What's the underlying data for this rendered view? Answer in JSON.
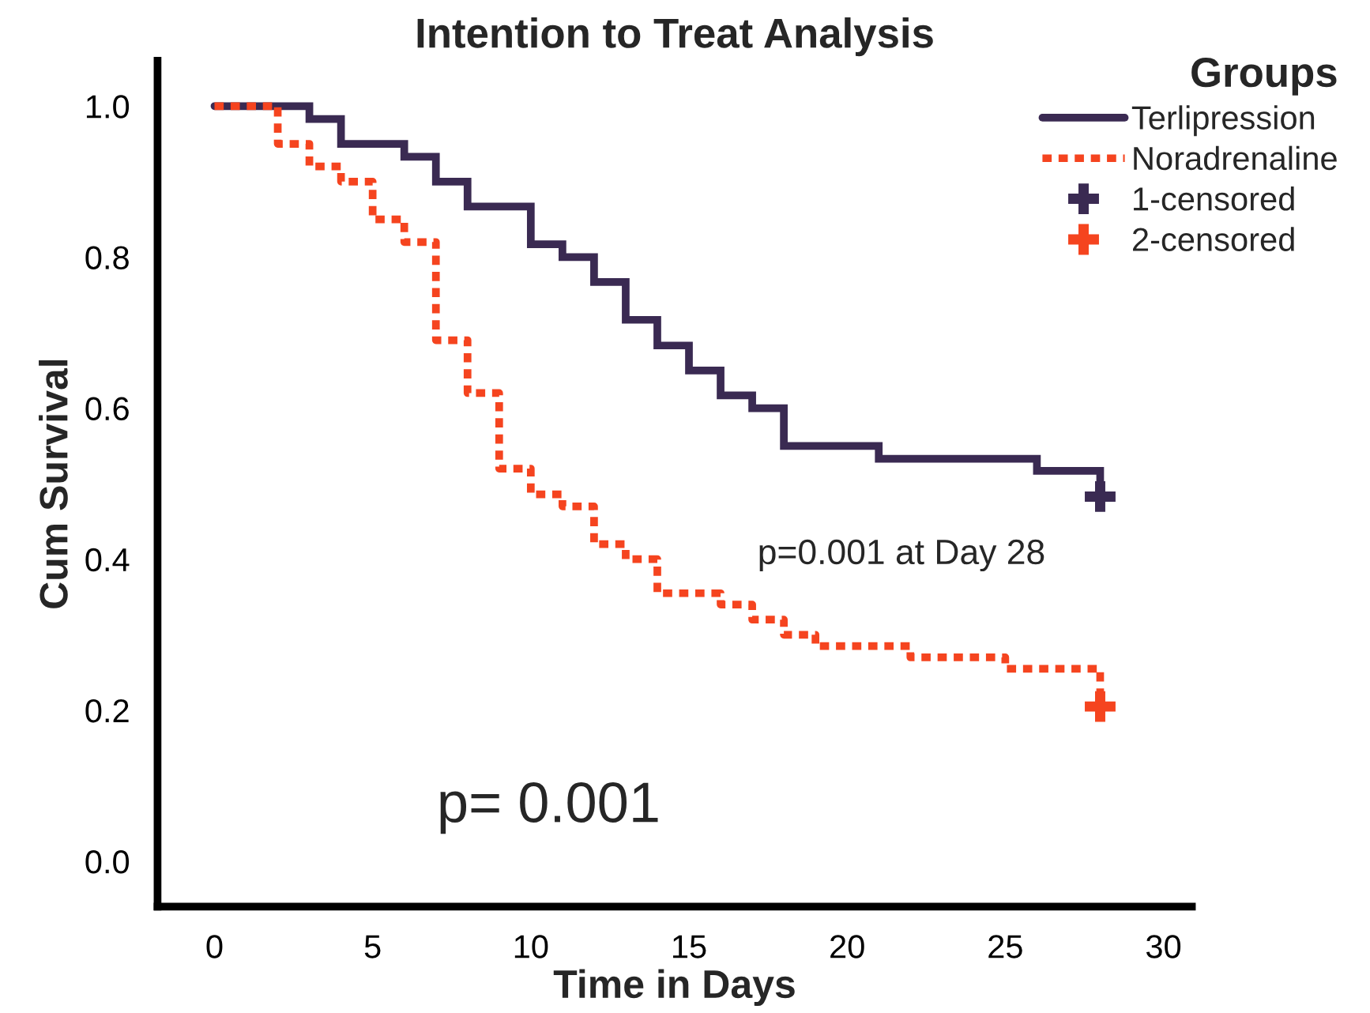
{
  "chart_data": {
    "type": "step",
    "title": "Intention to Treat Analysis",
    "xlabel": "Time in Days",
    "ylabel": "Cum Survival",
    "legend_title": "Groups",
    "legend": "top right",
    "xlim": [
      -1.8,
      30.9
    ],
    "ylim": [
      -0.06,
      1.06
    ],
    "xticks": [
      0,
      5,
      10,
      15,
      20,
      25,
      30
    ],
    "yticks": [
      {
        "value": 0,
        "label": "0.0"
      },
      {
        "value": 0.2,
        "label": "0.2"
      },
      {
        "value": 0.4,
        "label": "0.4"
      },
      {
        "value": 0.6,
        "label": "0.6"
      },
      {
        "value": 0.8,
        "label": "0.8"
      },
      {
        "value": 1,
        "label": "1.0"
      }
    ],
    "grid": false,
    "series": [
      {
        "name": "Terlipression",
        "line_style": "solid",
        "color": "#3a2a52",
        "x": [
          0,
          3,
          4,
          6,
          7,
          8,
          10,
          11,
          12,
          13,
          14,
          15,
          16,
          17,
          18,
          21,
          26,
          28
        ],
        "values": [
          1.0,
          0.983,
          0.95,
          0.933,
          0.9,
          0.867,
          0.817,
          0.8,
          0.767,
          0.717,
          0.683,
          0.65,
          0.617,
          0.6,
          0.55,
          0.533,
          0.517,
          0.483
        ]
      },
      {
        "name": "Noradrenaline",
        "line_style": "dotted",
        "color": "#f5441f",
        "x": [
          0,
          2,
          3,
          4,
          5,
          6,
          7,
          8,
          9,
          10,
          11,
          12,
          13,
          14,
          16,
          17,
          18,
          19,
          22,
          25,
          28
        ],
        "values": [
          1.0,
          0.95,
          0.92,
          0.9,
          0.85,
          0.82,
          0.69,
          0.62,
          0.52,
          0.486,
          0.47,
          0.42,
          0.4,
          0.355,
          0.34,
          0.32,
          0.3,
          0.285,
          0.27,
          0.255,
          0.205
        ]
      },
      {
        "name": "1-censored",
        "type": "scatter",
        "marker": "cross",
        "color": "#3a2a52",
        "x": [
          28
        ],
        "values": [
          0.483
        ]
      },
      {
        "name": "2-censored",
        "type": "scatter",
        "marker": "cross",
        "color": "#f5441f",
        "x": [
          28
        ],
        "values": [
          0.205
        ]
      }
    ],
    "annotations": [
      "p=0.001 at Day 28",
      "p= 0.001"
    ]
  }
}
